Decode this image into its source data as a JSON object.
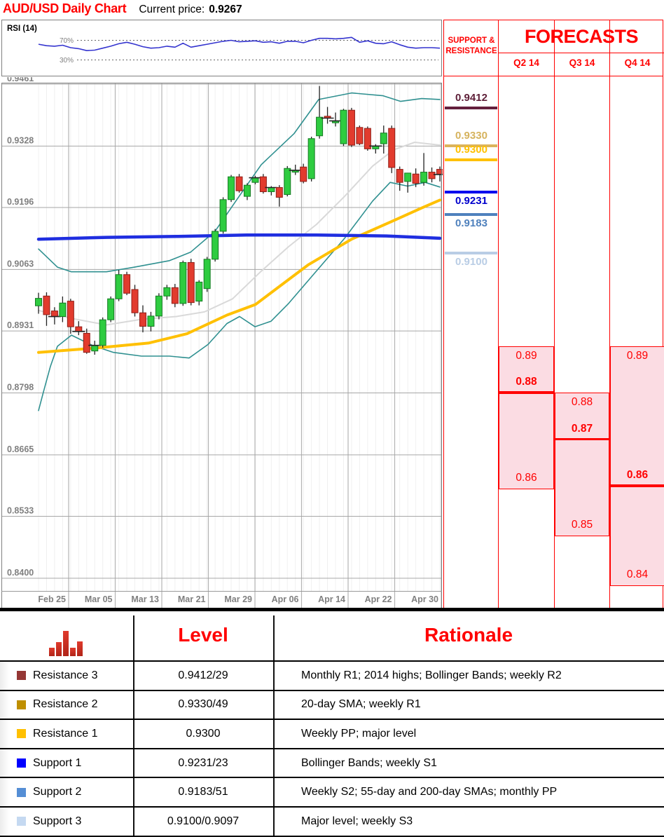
{
  "header": {
    "title": "AUD/USD Daily Chart",
    "current_price_label": "Current price:",
    "current_price": "0.9267"
  },
  "rsi": {
    "label": "RSI (14)",
    "upper_label": "70%",
    "lower_label": "30%",
    "upper": 70,
    "lower": 30,
    "line_color": "#3434cf",
    "values": [
      62,
      59,
      58,
      60,
      55,
      53,
      49,
      50,
      54,
      58,
      63,
      66,
      62,
      57,
      54,
      55,
      58,
      56,
      64,
      56,
      59,
      62,
      65,
      68,
      70,
      67,
      68,
      69,
      66,
      67,
      64,
      68,
      68,
      65,
      70,
      74,
      74,
      73,
      74,
      76,
      66,
      69,
      64,
      63,
      67,
      61,
      56,
      54,
      55,
      55,
      54
    ]
  },
  "chart_data": {
    "type": "candlestick",
    "title": "AUD/USD Daily Chart",
    "ylim": [
      0.84,
      0.9461
    ],
    "y_ticks": [
      "0.9461",
      "0.9328",
      "0.9196",
      "0.9063",
      "0.8931",
      "0.8798",
      "0.8665",
      "0.8533",
      "0.8400"
    ],
    "y_tick_values": [
      0.9461,
      0.9328,
      0.9196,
      0.9063,
      0.8931,
      0.8798,
      0.8665,
      0.8533,
      0.84
    ],
    "x_ticks": [
      "Feb 25",
      "Mar 05",
      "Mar 13",
      "Mar 21",
      "Mar 29",
      "Apr 06",
      "Apr 14",
      "Apr 22",
      "Apr 30"
    ],
    "current_price": 0.9267,
    "colors": {
      "up": "#2ecc40",
      "up_stroke": "#157a22",
      "down": "#e23b2e",
      "down_stroke": "#8f1f18",
      "sma20": "#d9d9d9",
      "sma55": "#ffc000",
      "sma200": "#1f2ee0",
      "bollinger": "#2f9090",
      "grid": "#a6a6a6",
      "tick_text": "#7f7f7f"
    },
    "ohlc": [
      [
        "Feb 19",
        0.8985,
        0.9013,
        0.8968,
        0.9001
      ],
      [
        "Feb 20",
        0.9006,
        0.9014,
        0.8942,
        0.8966
      ],
      [
        "Feb 21",
        0.8974,
        0.8982,
        0.8945,
        0.8962
      ],
      [
        "Feb 24",
        0.8962,
        0.9005,
        0.895,
        0.8991
      ],
      [
        "Feb 25",
        0.8995,
        0.9,
        0.8925,
        0.894
      ],
      [
        "Feb 26",
        0.894,
        0.8952,
        0.8922,
        0.893
      ],
      [
        "Feb 27",
        0.8926,
        0.8936,
        0.8882,
        0.8885
      ],
      [
        "Feb 28",
        0.8888,
        0.891,
        0.888,
        0.89
      ],
      [
        "Mar 03",
        0.89,
        0.896,
        0.8895,
        0.8955
      ],
      [
        "Mar 04",
        0.8955,
        0.9005,
        0.895,
        0.9
      ],
      [
        "Mar 05",
        0.9,
        0.9062,
        0.8995,
        0.9052
      ],
      [
        "Mar 06",
        0.9052,
        0.9058,
        0.9008,
        0.9012
      ],
      [
        "Mar 07",
        0.902,
        0.903,
        0.8962,
        0.897
      ],
      [
        "Mar 10",
        0.897,
        0.8986,
        0.8928,
        0.8941
      ],
      [
        "Mar 11",
        0.8941,
        0.8972,
        0.893,
        0.8963
      ],
      [
        "Mar 12",
        0.8963,
        0.9012,
        0.8956,
        0.9006
      ],
      [
        "Mar 13",
        0.9006,
        0.903,
        0.8998,
        0.9024
      ],
      [
        "Mar 14",
        0.9024,
        0.9032,
        0.8982,
        0.899
      ],
      [
        "Mar 17",
        0.899,
        0.9082,
        0.8985,
        0.9078
      ],
      [
        "Mar 18",
        0.9078,
        0.9086,
        0.8986,
        0.8992
      ],
      [
        "Mar 19",
        0.8995,
        0.904,
        0.8986,
        0.9036
      ],
      [
        "Mar 20",
        0.9022,
        0.909,
        0.9015,
        0.9085
      ],
      [
        "Mar 21",
        0.9085,
        0.915,
        0.908,
        0.9145
      ],
      [
        "Mar 24",
        0.9145,
        0.9218,
        0.914,
        0.9213
      ],
      [
        "Mar 25",
        0.9213,
        0.9266,
        0.9208,
        0.9262
      ],
      [
        "Mar 26",
        0.9262,
        0.9268,
        0.9228,
        0.9232
      ],
      [
        "Mar 27",
        0.922,
        0.9248,
        0.9212,
        0.9244
      ],
      [
        "Mar 28",
        0.925,
        0.9264,
        0.9246,
        0.926
      ],
      [
        "Mar 31",
        0.9262,
        0.9268,
        0.9226,
        0.923
      ],
      [
        "Apr 01",
        0.923,
        0.9242,
        0.9222,
        0.9239
      ],
      [
        "Apr 02",
        0.9239,
        0.9244,
        0.9198,
        0.9218
      ],
      [
        "Apr 03",
        0.9224,
        0.9285,
        0.922,
        0.928
      ],
      [
        "Apr 04",
        0.9272,
        0.9288,
        0.9266,
        0.9276
      ],
      [
        "Apr 07",
        0.9283,
        0.929,
        0.9248,
        0.9252
      ],
      [
        "Apr 08",
        0.9258,
        0.9348,
        0.9252,
        0.9344
      ],
      [
        "Apr 09",
        0.935,
        0.9457,
        0.9344,
        0.939
      ],
      [
        "Apr 10",
        0.9392,
        0.9412,
        0.9376,
        0.9388
      ],
      [
        "Apr 11",
        0.9378,
        0.94,
        0.937,
        0.9382
      ],
      [
        "Apr 14",
        0.9333,
        0.9408,
        0.9328,
        0.9405
      ],
      [
        "Apr 15",
        0.9405,
        0.941,
        0.9326,
        0.933
      ],
      [
        "Apr 16",
        0.9368,
        0.9372,
        0.933,
        0.9333
      ],
      [
        "Apr 17",
        0.9366,
        0.937,
        0.9318,
        0.9322
      ],
      [
        "Apr 18",
        0.9322,
        0.9332,
        0.9312,
        0.9328
      ],
      [
        "Apr 21",
        0.9333,
        0.9372,
        0.9312,
        0.9356
      ],
      [
        "Apr 22",
        0.9366,
        0.9372,
        0.927,
        0.9282
      ],
      [
        "Apr 23",
        0.9278,
        0.9284,
        0.9232,
        0.925
      ],
      [
        "Apr 24",
        0.9252,
        0.9262,
        0.9228,
        0.927
      ],
      [
        "Apr 25",
        0.9268,
        0.928,
        0.924,
        0.9248
      ],
      [
        "Apr 28",
        0.925,
        0.9313,
        0.9243,
        0.9272
      ],
      [
        "Apr 29",
        0.9272,
        0.9282,
        0.925,
        0.9258
      ],
      [
        "Apr 30",
        0.9278,
        0.9284,
        0.9252,
        0.9267
      ]
    ],
    "overlays": {
      "sma200": {
        "name": "200-day SMA",
        "points": [
          [
            53,
            0.9128
          ],
          [
            150,
            0.9132
          ],
          [
            250,
            0.9134
          ],
          [
            350,
            0.9137
          ],
          [
            450,
            0.9137
          ],
          [
            550,
            0.9135
          ],
          [
            626,
            0.913
          ]
        ]
      },
      "sma55": {
        "name": "55-day SMA",
        "points": [
          [
            53,
            0.8885
          ],
          [
            140,
            0.8895
          ],
          [
            210,
            0.8905
          ],
          [
            265,
            0.8925
          ],
          [
            322,
            0.8965
          ],
          [
            363,
            0.8988
          ],
          [
            438,
            0.9073
          ],
          [
            500,
            0.9128
          ],
          [
            560,
            0.9168
          ],
          [
            600,
            0.9195
          ],
          [
            626,
            0.9212
          ]
        ]
      },
      "sma20": {
        "name": "20-day SMA",
        "points": [
          [
            53,
            0.8975
          ],
          [
            100,
            0.8958
          ],
          [
            150,
            0.8944
          ],
          [
            200,
            0.8956
          ],
          [
            250,
            0.8962
          ],
          [
            290,
            0.8972
          ],
          [
            330,
            0.9
          ],
          [
            370,
            0.9058
          ],
          [
            410,
            0.9112
          ],
          [
            450,
            0.916
          ],
          [
            490,
            0.922
          ],
          [
            530,
            0.9285
          ],
          [
            560,
            0.932
          ],
          [
            590,
            0.9336
          ],
          [
            626,
            0.933
          ]
        ]
      },
      "boll_upper": {
        "name": "Bollinger upper",
        "points": [
          [
            53,
            0.9107
          ],
          [
            80,
            0.9068
          ],
          [
            100,
            0.9058
          ],
          [
            150,
            0.9058
          ],
          [
            190,
            0.9068
          ],
          [
            240,
            0.9082
          ],
          [
            270,
            0.91
          ],
          [
            305,
            0.9145
          ],
          [
            338,
            0.9217
          ],
          [
            371,
            0.9288
          ],
          [
            418,
            0.9355
          ],
          [
            453,
            0.9428
          ],
          [
            500,
            0.9442
          ],
          [
            545,
            0.9436
          ],
          [
            570,
            0.9424
          ],
          [
            600,
            0.943
          ],
          [
            626,
            0.9428
          ]
        ]
      },
      "boll_lower": {
        "name": "Bollinger lower",
        "points": [
          [
            53,
            0.876
          ],
          [
            60,
            0.88
          ],
          [
            70,
            0.8855
          ],
          [
            80,
            0.8898
          ],
          [
            100,
            0.8922
          ],
          [
            130,
            0.89
          ],
          [
            160,
            0.8885
          ],
          [
            200,
            0.8877
          ],
          [
            240,
            0.8877
          ],
          [
            268,
            0.8873
          ],
          [
            295,
            0.8902
          ],
          [
            322,
            0.8947
          ],
          [
            340,
            0.8962
          ],
          [
            362,
            0.894
          ],
          [
            385,
            0.8952
          ],
          [
            410,
            0.899
          ],
          [
            450,
            0.906
          ],
          [
            490,
            0.913
          ],
          [
            530,
            0.921
          ],
          [
            555,
            0.925
          ],
          [
            580,
            0.9242
          ],
          [
            605,
            0.925
          ],
          [
            626,
            0.924
          ]
        ]
      }
    }
  },
  "sr_panel": {
    "header_line1": "SUPPORT &",
    "header_line2": "RESISTANCE",
    "levels": [
      {
        "value": "0.9412",
        "price": 0.9412,
        "text_color": "#5e1f38",
        "line_color": "#641f3d",
        "label_side": "above"
      },
      {
        "value": "0.9330",
        "price": 0.933,
        "text_color": "#d6b35e",
        "line_color": "#dcb45c",
        "label_side": "above"
      },
      {
        "value": "0.9300",
        "price": 0.93,
        "text_color": "#ffc000",
        "line_color": "#ffc000",
        "label_side": "above"
      },
      {
        "value": "0.9231",
        "price": 0.9231,
        "text_color": "#0000cd",
        "line_color": "#0000ee",
        "label_side": "below"
      },
      {
        "value": "0.9183",
        "price": 0.9183,
        "text_color": "#4f81bd",
        "line_color": "#4f81bd",
        "label_side": "below"
      },
      {
        "value": "0.9100",
        "price": 0.91,
        "text_color": "#b9cde5",
        "line_color": "#b9cde5",
        "label_side": "below"
      }
    ]
  },
  "forecasts": {
    "title": "FORECASTS",
    "accent": "#ff0000",
    "box_fill": "#fbdce3",
    "columns": [
      {
        "label": "Q2 14",
        "high": 0.89,
        "mid": 0.88,
        "low": 0.86,
        "extent_low": 0.8592,
        "high_text": "0.89",
        "mid_text": "0.88",
        "low_text": "0.86"
      },
      {
        "label": "Q3 14",
        "high": 0.88,
        "mid": 0.87,
        "low": 0.85,
        "extent_low": 0.8492,
        "high_text": "0.88",
        "mid_text": "0.87",
        "low_text": "0.85"
      },
      {
        "label": "Q4 14",
        "high": 0.89,
        "mid": 0.86,
        "low": 0.84,
        "extent_low": 0.8385,
        "high_text": "0.89",
        "mid_text": "0.86",
        "low_text": "0.84"
      }
    ]
  },
  "levels_table": {
    "level_header": "Level",
    "rationale_header": "Rationale",
    "icon": "bar-chart-icon",
    "icon_bar_heights": [
      12,
      20,
      36,
      12,
      21
    ],
    "rows": [
      {
        "swatch": "#953735",
        "label": "Resistance 3",
        "level": "0.9412/29",
        "rationale": "Monthly R1; 2014 highs; Bollinger Bands; weekly R2"
      },
      {
        "swatch": "#bf8f00",
        "label": "Resistance 2",
        "level": "0.9330/49",
        "rationale": "20-day SMA; weekly R1"
      },
      {
        "swatch": "#ffc000",
        "label": "Resistance 1",
        "level": "0.9300",
        "rationale": "Weekly PP; major level"
      },
      {
        "swatch": "#0000ff",
        "label": "Support 1",
        "level": "0.9231/23",
        "rationale": "Bollinger Bands; weekly S1"
      },
      {
        "swatch": "#558ed5",
        "label": "Support 2",
        "level": "0.9183/51",
        "rationale": "Weekly S2; 55-day and 200-day SMAs; monthly PP"
      },
      {
        "swatch": "#c5d9f1",
        "label": "Support 3",
        "level": "0.9100/0.9097",
        "rationale": "Major level; weekly S3"
      }
    ]
  }
}
